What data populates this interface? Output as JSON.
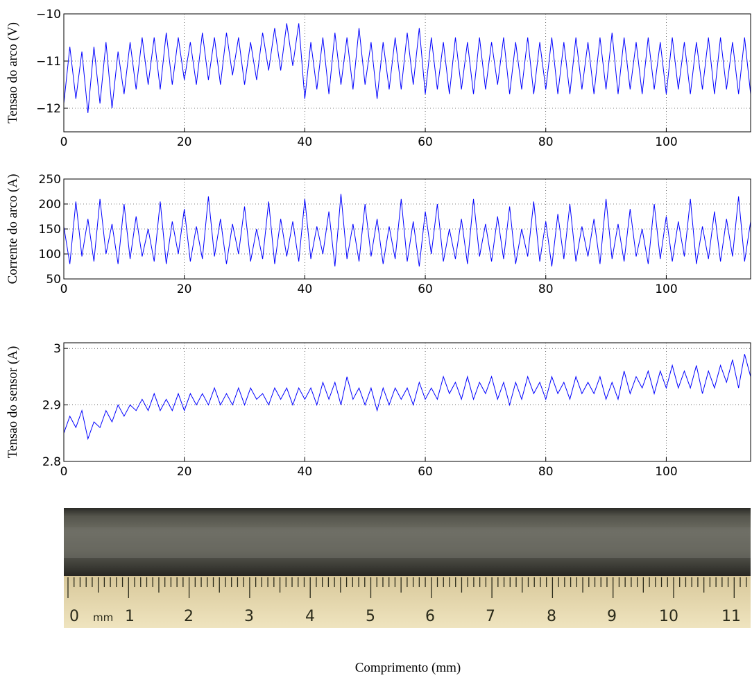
{
  "chart_data": [
    {
      "type": "line",
      "ylabel": "Tensao do arco (V)",
      "x": [
        0,
        1,
        2,
        3,
        4,
        5,
        6,
        7,
        8,
        9,
        10,
        11,
        12,
        13,
        14,
        15,
        16,
        17,
        18,
        19,
        20,
        21,
        22,
        23,
        24,
        25,
        26,
        27,
        28,
        29,
        30,
        31,
        32,
        33,
        34,
        35,
        36,
        37,
        38,
        39,
        40,
        41,
        42,
        43,
        44,
        45,
        46,
        47,
        48,
        49,
        50,
        51,
        52,
        53,
        54,
        55,
        56,
        57,
        58,
        59,
        60,
        61,
        62,
        63,
        64,
        65,
        66,
        67,
        68,
        69,
        70,
        71,
        72,
        73,
        74,
        75,
        76,
        77,
        78,
        79,
        80,
        81,
        82,
        83,
        84,
        85,
        86,
        87,
        88,
        89,
        90,
        91,
        92,
        93,
        94,
        95,
        96,
        97,
        98,
        99,
        100,
        101,
        102,
        103,
        104,
        105,
        106,
        107,
        108,
        109,
        110,
        111,
        112,
        113,
        114
      ],
      "series": [
        {
          "color": "#0000ff",
          "values": [
            -11.9,
            -10.7,
            -11.8,
            -10.8,
            -12.1,
            -10.7,
            -11.9,
            -10.6,
            -12.0,
            -10.8,
            -11.7,
            -10.6,
            -11.6,
            -10.5,
            -11.5,
            -10.5,
            -11.6,
            -10.4,
            -11.5,
            -10.5,
            -11.4,
            -10.6,
            -11.5,
            -10.4,
            -11.4,
            -10.5,
            -11.5,
            -10.4,
            -11.3,
            -10.5,
            -11.5,
            -10.6,
            -11.4,
            -10.4,
            -11.2,
            -10.3,
            -11.2,
            -10.2,
            -11.1,
            -10.2,
            -11.8,
            -10.6,
            -11.6,
            -10.5,
            -11.7,
            -10.4,
            -11.5,
            -10.5,
            -11.6,
            -10.3,
            -11.5,
            -10.6,
            -11.8,
            -10.6,
            -11.6,
            -10.5,
            -11.6,
            -10.4,
            -11.5,
            -10.3,
            -11.7,
            -10.5,
            -11.6,
            -10.6,
            -11.7,
            -10.5,
            -11.6,
            -10.6,
            -11.7,
            -10.5,
            -11.6,
            -10.6,
            -11.5,
            -10.5,
            -11.7,
            -10.6,
            -11.6,
            -10.5,
            -11.7,
            -10.6,
            -11.6,
            -10.5,
            -11.7,
            -10.6,
            -11.7,
            -10.5,
            -11.6,
            -10.6,
            -11.7,
            -10.5,
            -11.6,
            -10.4,
            -11.7,
            -10.5,
            -11.6,
            -10.6,
            -11.7,
            -10.5,
            -11.6,
            -10.6,
            -11.7,
            -10.5,
            -11.6,
            -10.6,
            -11.7,
            -10.6,
            -11.6,
            -10.5,
            -11.7,
            -10.5,
            -11.6,
            -10.6,
            -11.7,
            -10.5,
            -11.7
          ]
        }
      ],
      "xlim": [
        0,
        114
      ],
      "xticks": [
        0,
        20,
        40,
        60,
        80,
        100
      ],
      "ylim": [
        -12.5,
        -10
      ],
      "yticks": [
        {
          "value": -12,
          "label": "−12"
        },
        {
          "value": -11,
          "label": "−11"
        },
        {
          "value": -10,
          "label": "−10"
        }
      ],
      "grid": true
    },
    {
      "type": "line",
      "ylabel": "Corrente do arco (A)",
      "x": [
        0,
        1,
        2,
        3,
        4,
        5,
        6,
        7,
        8,
        9,
        10,
        11,
        12,
        13,
        14,
        15,
        16,
        17,
        18,
        19,
        20,
        21,
        22,
        23,
        24,
        25,
        26,
        27,
        28,
        29,
        30,
        31,
        32,
        33,
        34,
        35,
        36,
        37,
        38,
        39,
        40,
        41,
        42,
        43,
        44,
        45,
        46,
        47,
        48,
        49,
        50,
        51,
        52,
        53,
        54,
        55,
        56,
        57,
        58,
        59,
        60,
        61,
        62,
        63,
        64,
        65,
        66,
        67,
        68,
        69,
        70,
        71,
        72,
        73,
        74,
        75,
        76,
        77,
        78,
        79,
        80,
        81,
        82,
        83,
        84,
        85,
        86,
        87,
        88,
        89,
        90,
        91,
        92,
        93,
        94,
        95,
        96,
        97,
        98,
        99,
        100,
        101,
        102,
        103,
        104,
        105,
        106,
        107,
        108,
        109,
        110,
        111,
        112,
        113,
        114
      ],
      "series": [
        {
          "color": "#0000ff",
          "values": [
            155,
            80,
            205,
            95,
            170,
            85,
            210,
            100,
            160,
            80,
            200,
            90,
            175,
            95,
            150,
            85,
            205,
            80,
            165,
            100,
            190,
            85,
            155,
            90,
            215,
            95,
            170,
            80,
            160,
            100,
            195,
            85,
            150,
            90,
            205,
            80,
            170,
            95,
            165,
            85,
            210,
            90,
            155,
            100,
            185,
            75,
            220,
            90,
            160,
            85,
            200,
            95,
            170,
            80,
            155,
            90,
            210,
            85,
            165,
            75,
            185,
            100,
            200,
            85,
            150,
            90,
            170,
            80,
            210,
            95,
            160,
            85,
            175,
            90,
            195,
            80,
            150,
            95,
            205,
            85,
            165,
            75,
            180,
            90,
            200,
            85,
            155,
            95,
            170,
            80,
            210,
            90,
            160,
            85,
            190,
            95,
            150,
            80,
            200,
            90,
            175,
            85,
            165,
            95,
            210,
            80,
            155,
            90,
            185,
            85,
            170,
            95,
            215,
            85,
            165
          ]
        }
      ],
      "xlim": [
        0,
        114
      ],
      "xticks": [
        0,
        20,
        40,
        60,
        80,
        100
      ],
      "ylim": [
        50,
        250
      ],
      "yticks": [
        50,
        100,
        150,
        200,
        250
      ],
      "grid": true
    },
    {
      "type": "line",
      "ylabel": "Tensao do sensor (A)",
      "x": [
        0,
        1,
        2,
        3,
        4,
        5,
        6,
        7,
        8,
        9,
        10,
        11,
        12,
        13,
        14,
        15,
        16,
        17,
        18,
        19,
        20,
        21,
        22,
        23,
        24,
        25,
        26,
        27,
        28,
        29,
        30,
        31,
        32,
        33,
        34,
        35,
        36,
        37,
        38,
        39,
        40,
        41,
        42,
        43,
        44,
        45,
        46,
        47,
        48,
        49,
        50,
        51,
        52,
        53,
        54,
        55,
        56,
        57,
        58,
        59,
        60,
        61,
        62,
        63,
        64,
        65,
        66,
        67,
        68,
        69,
        70,
        71,
        72,
        73,
        74,
        75,
        76,
        77,
        78,
        79,
        80,
        81,
        82,
        83,
        84,
        85,
        86,
        87,
        88,
        89,
        90,
        91,
        92,
        93,
        94,
        95,
        96,
        97,
        98,
        99,
        100,
        101,
        102,
        103,
        104,
        105,
        106,
        107,
        108,
        109,
        110,
        111,
        112,
        113,
        114
      ],
      "series": [
        {
          "color": "#0000ff",
          "values": [
            2.85,
            2.88,
            2.86,
            2.89,
            2.84,
            2.87,
            2.86,
            2.89,
            2.87,
            2.9,
            2.88,
            2.9,
            2.89,
            2.91,
            2.89,
            2.92,
            2.89,
            2.91,
            2.89,
            2.92,
            2.89,
            2.92,
            2.9,
            2.92,
            2.9,
            2.93,
            2.9,
            2.92,
            2.9,
            2.93,
            2.9,
            2.93,
            2.91,
            2.92,
            2.9,
            2.93,
            2.91,
            2.93,
            2.9,
            2.93,
            2.91,
            2.93,
            2.9,
            2.94,
            2.91,
            2.94,
            2.9,
            2.95,
            2.91,
            2.93,
            2.9,
            2.93,
            2.89,
            2.93,
            2.9,
            2.93,
            2.91,
            2.93,
            2.9,
            2.94,
            2.91,
            2.93,
            2.91,
            2.95,
            2.92,
            2.94,
            2.91,
            2.95,
            2.91,
            2.94,
            2.92,
            2.95,
            2.91,
            2.94,
            2.9,
            2.94,
            2.91,
            2.95,
            2.92,
            2.94,
            2.91,
            2.95,
            2.92,
            2.94,
            2.91,
            2.95,
            2.92,
            2.94,
            2.92,
            2.95,
            2.91,
            2.94,
            2.91,
            2.96,
            2.92,
            2.95,
            2.93,
            2.96,
            2.92,
            2.96,
            2.93,
            2.97,
            2.93,
            2.96,
            2.93,
            2.97,
            2.92,
            2.96,
            2.93,
            2.97,
            2.94,
            2.98,
            2.93,
            2.99,
            2.95
          ]
        }
      ],
      "xlim": [
        0,
        114
      ],
      "xticks": [
        0,
        20,
        40,
        60,
        80,
        100
      ],
      "ylim": [
        2.8,
        3.01
      ],
      "yticks": [
        2.8,
        2.9,
        3
      ],
      "grid": true
    }
  ],
  "ruler": {
    "labels": [
      "0",
      "mm",
      "1",
      "2",
      "3",
      "4",
      "5",
      "6",
      "7",
      "8",
      "9",
      "10",
      "11"
    ]
  },
  "xlabel": "Comprimento (mm)"
}
